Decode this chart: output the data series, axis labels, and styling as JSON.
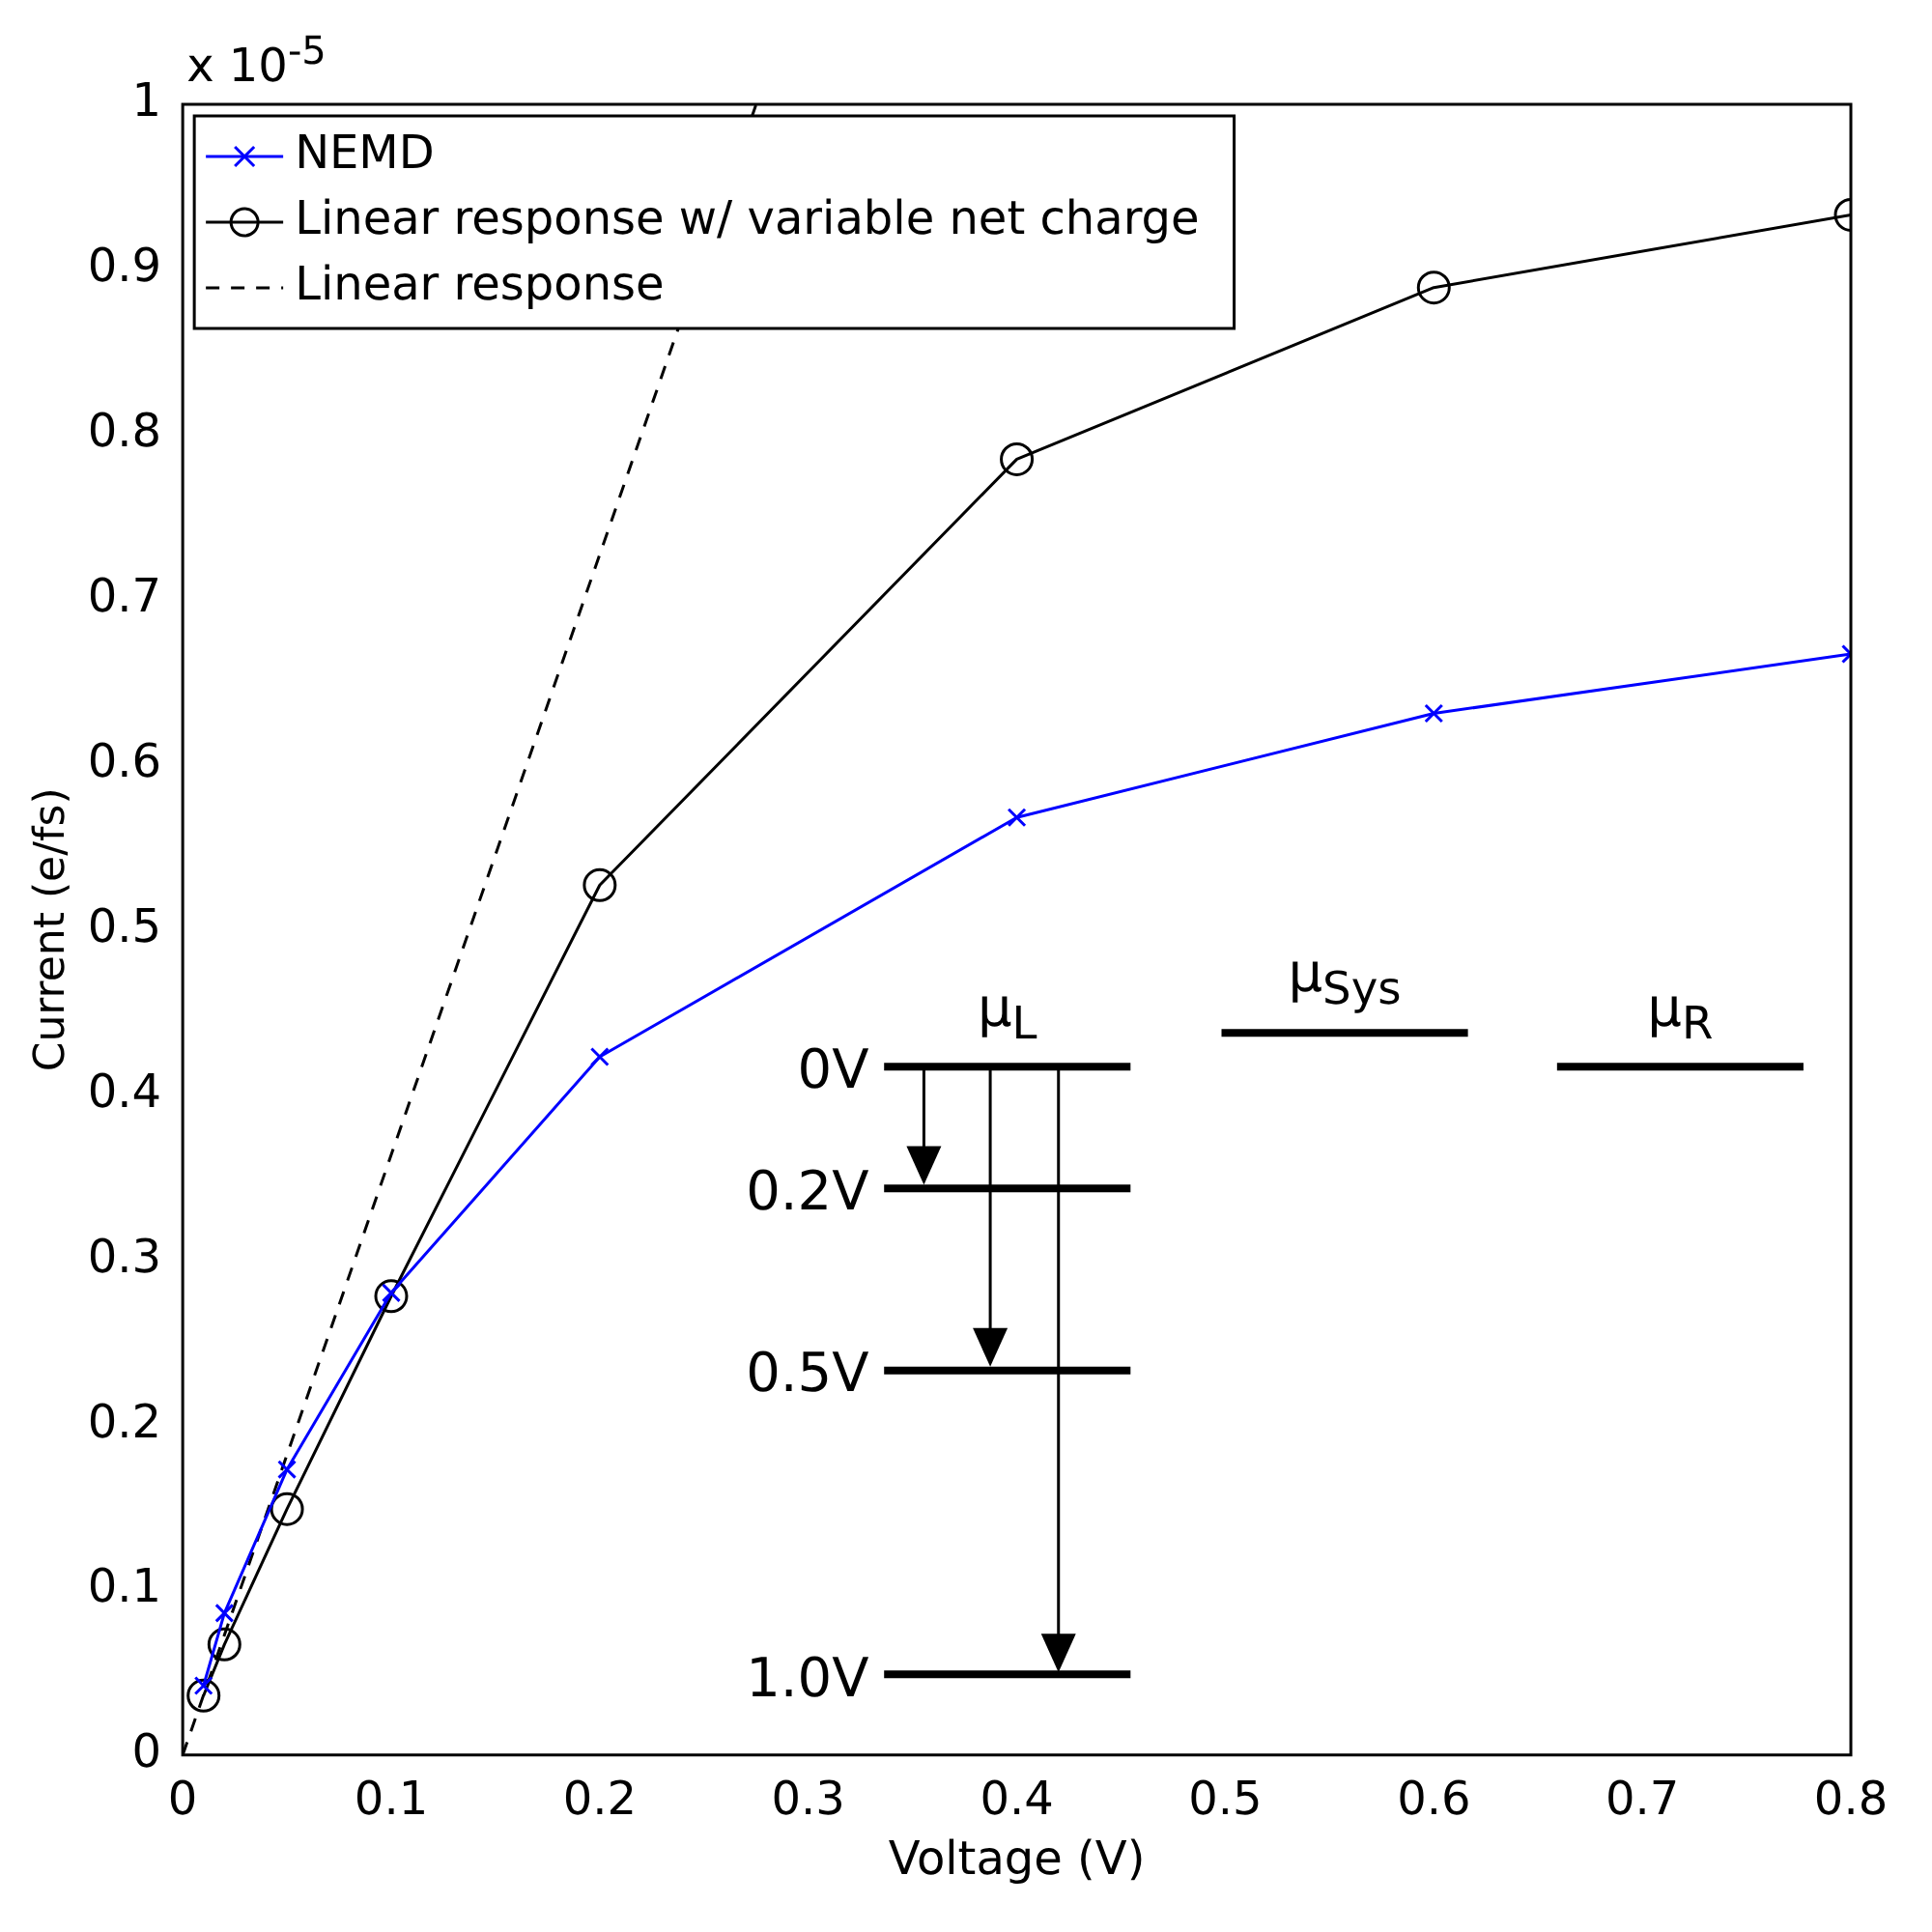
{
  "chart_data": {
    "type": "line",
    "xlabel": "Voltage (V)",
    "ylabel": "Current (e/fs)",
    "x": [
      0.01,
      0.02,
      0.05,
      0.1,
      0.2,
      0.4,
      0.6,
      0.8
    ],
    "series": [
      {
        "name": "NEMD",
        "color": "#0000ff",
        "marker": "cross",
        "line_style": "solid",
        "values": [
          0.042,
          0.086,
          0.173,
          0.28,
          0.423,
          0.568,
          0.631,
          0.667
        ]
      },
      {
        "name": "Linear response w/ variable net charge",
        "color": "#000000",
        "marker": "circle",
        "line_style": "solid",
        "values": [
          0.036,
          0.067,
          0.149,
          0.278,
          0.527,
          0.785,
          0.889,
          0.933
        ]
      },
      {
        "name": "Linear response",
        "color": "#000000",
        "marker": "none",
        "line_style": "dashed",
        "x": [
          0,
          0.275
        ],
        "values": [
          0,
          1
        ]
      }
    ],
    "xlim": [
      0,
      0.8
    ],
    "xticks": [
      0,
      0.1,
      0.2,
      0.3,
      0.4,
      0.5,
      0.6,
      0.7,
      0.8
    ],
    "ylim": [
      0,
      1
    ],
    "yticks": [
      0,
      0.1,
      0.2,
      0.3,
      0.4,
      0.5,
      0.6,
      0.7,
      0.8,
      0.9,
      1
    ],
    "grid": false,
    "legend": "top left",
    "annotations": [
      "x 10$^{-5}$",
      "0V",
      "0.2V",
      "0.5V",
      "1.0V",
      "μ$_{L}$",
      "μ$_{Sys}$",
      "μ$_{R}$"
    ]
  }
}
